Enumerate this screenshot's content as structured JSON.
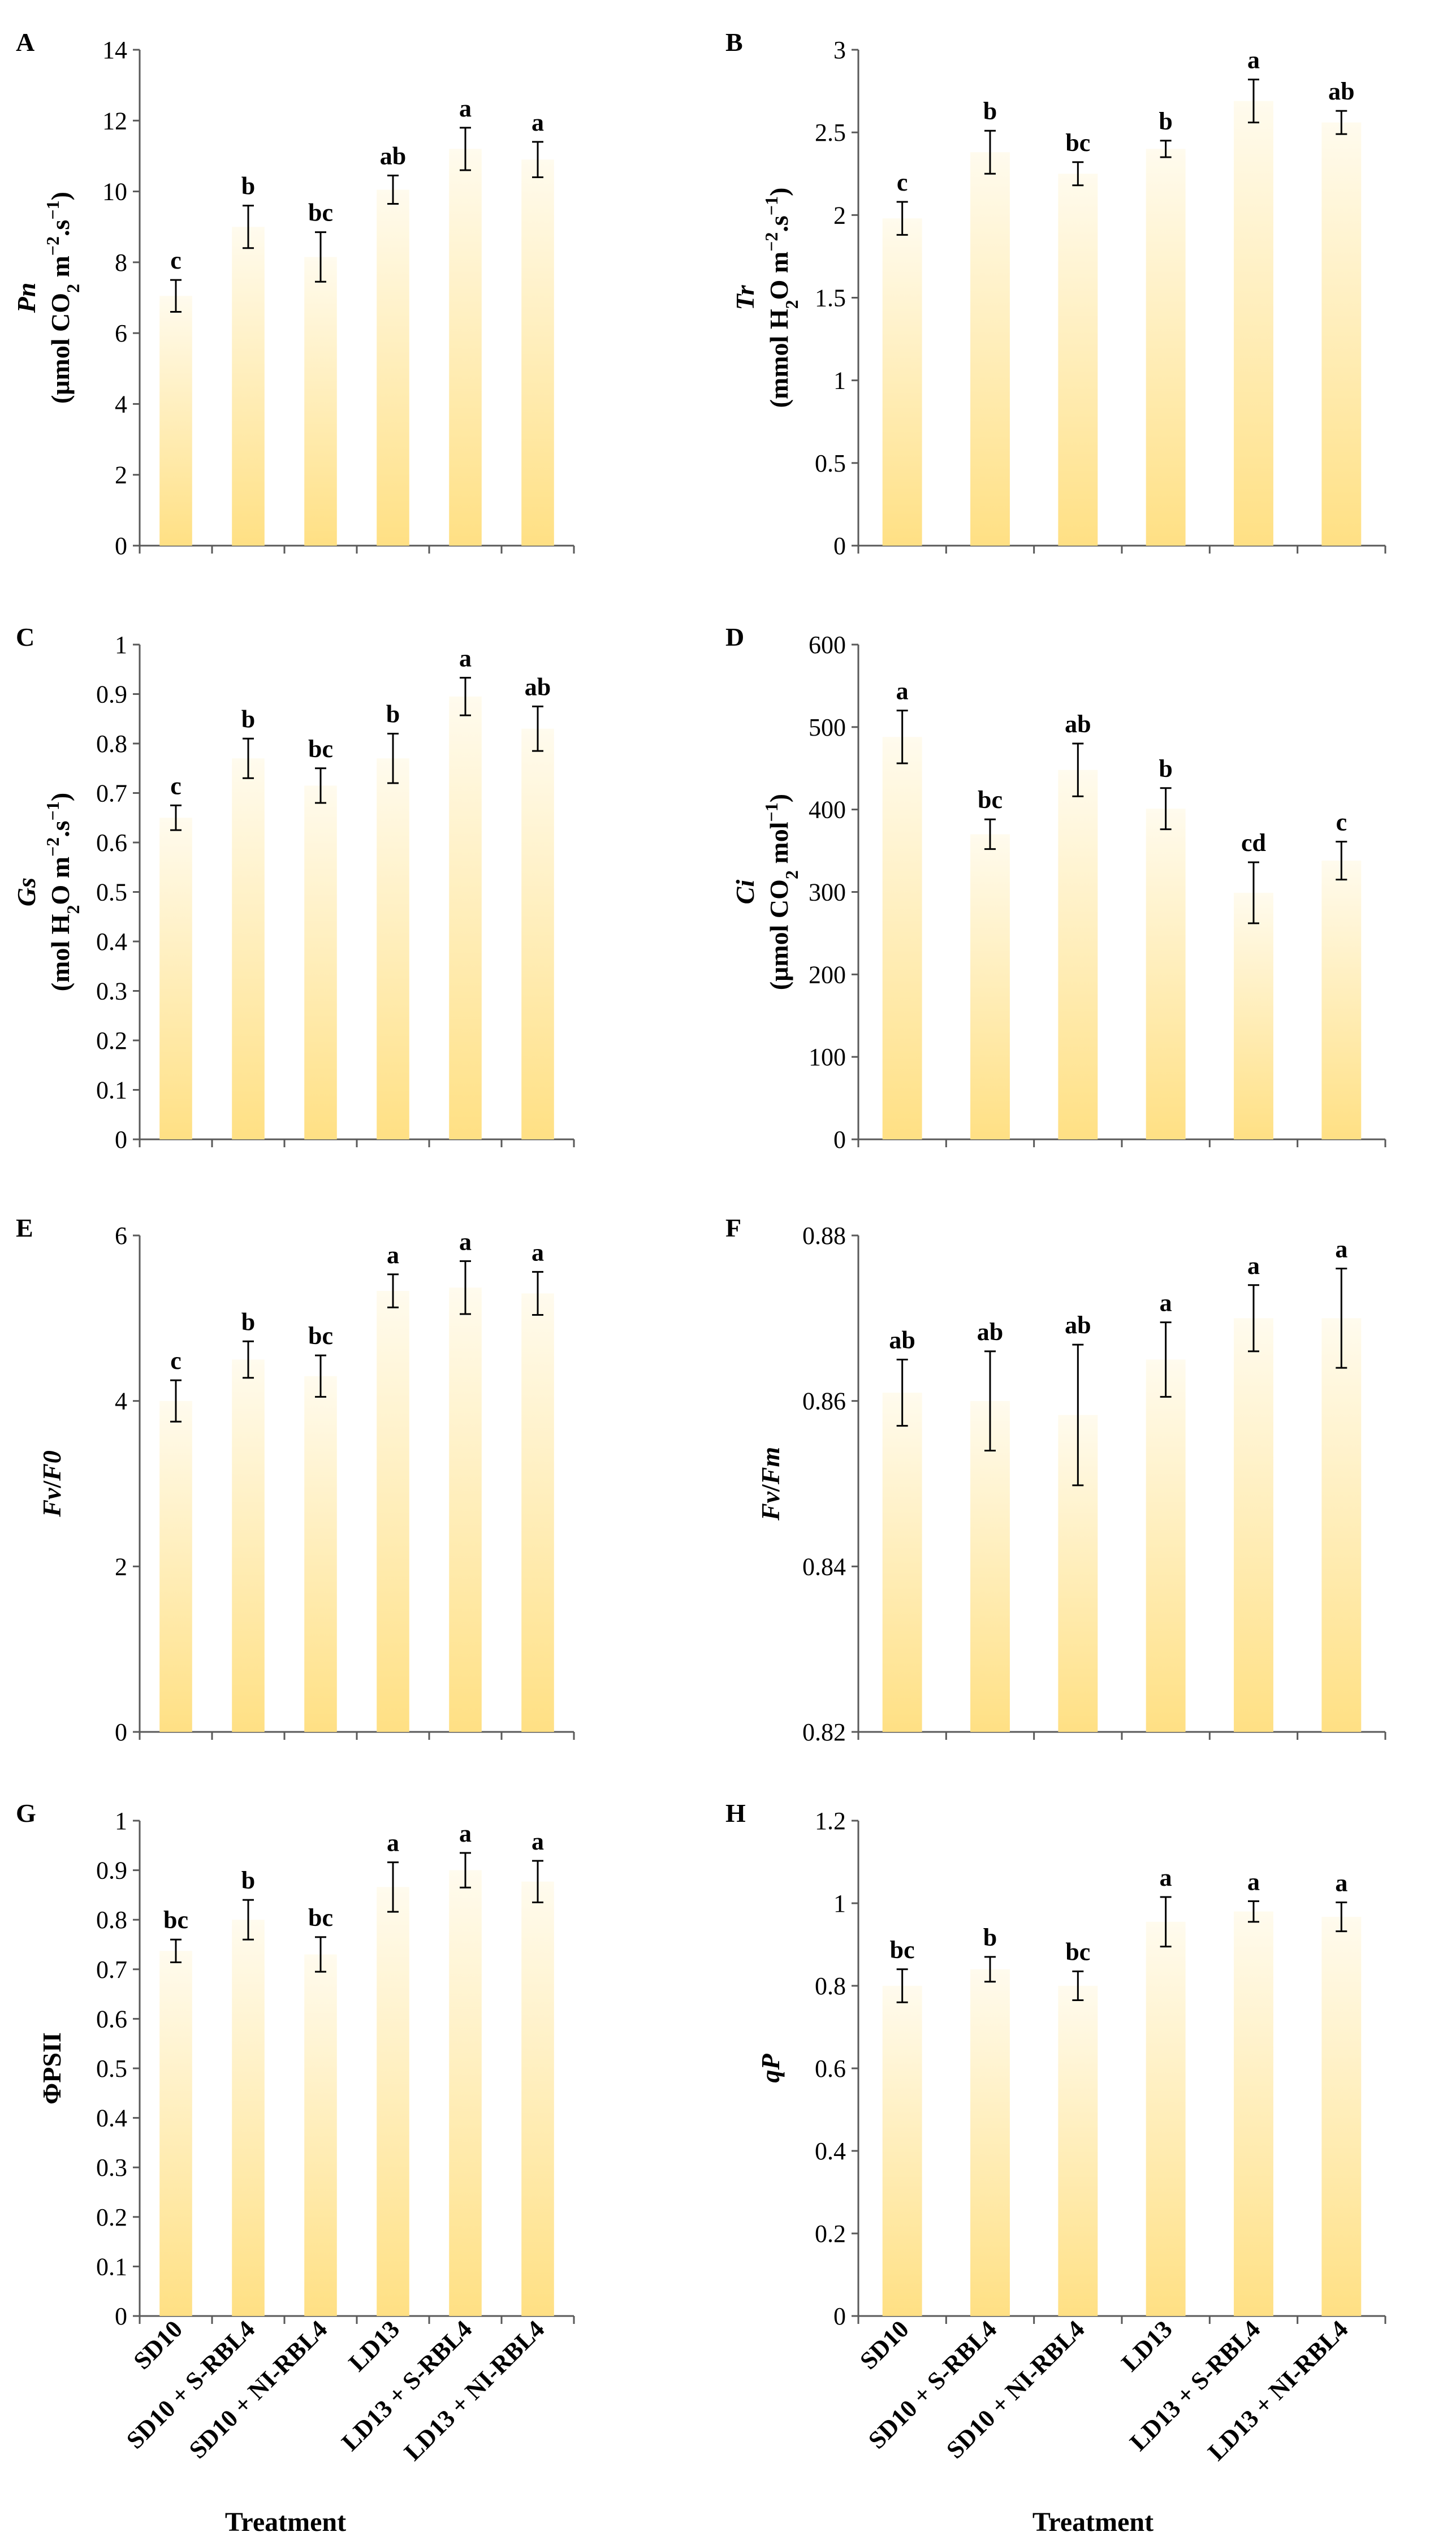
{
  "figure": {
    "categories": [
      "SD10",
      "SD10 + S-RBL4",
      "SD10 + NI-RBL4",
      "LD13",
      "LD13 + S-RBL4",
      "LD13 + NI-RBL4"
    ],
    "xlabel": "Treatment",
    "bar_gradient": [
      "#FFFBEE",
      "#FFE084"
    ]
  },
  "chart_data": [
    {
      "type": "bar",
      "panel": "A",
      "ylabel": [
        {
          "text": "Pn",
          "italic": true
        }
      ],
      "yunit": [
        {
          "text": "(μmol CO"
        },
        {
          "text": "2",
          "sub": true
        },
        {
          "text": " m"
        },
        {
          "text": "−2",
          "sup": true
        },
        {
          "text": ".s"
        },
        {
          "text": "−1",
          "sup": true
        },
        {
          "text": ")"
        }
      ],
      "ylim": [
        0,
        14
      ],
      "yticks": [
        0,
        2,
        4,
        6,
        8,
        10,
        12,
        14
      ],
      "values": [
        7.05,
        9.0,
        8.15,
        10.05,
        11.2,
        10.9
      ],
      "errors": [
        0.45,
        0.6,
        0.7,
        0.4,
        0.6,
        0.5
      ],
      "labels": [
        "c",
        "b",
        "bc",
        "ab",
        "a",
        "a"
      ]
    },
    {
      "type": "bar",
      "panel": "B",
      "ylabel": [
        {
          "text": "Tr",
          "italic": true
        }
      ],
      "yunit": [
        {
          "text": "(mmol H"
        },
        {
          "text": "2",
          "sub": true
        },
        {
          "text": "O m"
        },
        {
          "text": "−2",
          "sup": true
        },
        {
          "text": ".s"
        },
        {
          "text": "−1",
          "sup": true
        },
        {
          "text": ")"
        }
      ],
      "ylim": [
        0,
        3
      ],
      "yticks": [
        0,
        0.5,
        1,
        1.5,
        2,
        2.5,
        3
      ],
      "values": [
        1.98,
        2.38,
        2.25,
        2.4,
        2.69,
        2.56
      ],
      "errors": [
        0.1,
        0.13,
        0.07,
        0.05,
        0.13,
        0.07
      ],
      "labels": [
        "c",
        "b",
        "bc",
        "b",
        "a",
        "ab"
      ]
    },
    {
      "type": "bar",
      "panel": "C",
      "ylabel": [
        {
          "text": "Gs",
          "italic": true
        }
      ],
      "yunit": [
        {
          "text": "(mol H"
        },
        {
          "text": "2",
          "sub": true
        },
        {
          "text": "O m"
        },
        {
          "text": "−2",
          "sup": true
        },
        {
          "text": ".s"
        },
        {
          "text": "−1",
          "sup": true
        },
        {
          "text": ")"
        }
      ],
      "ylim": [
        0,
        1
      ],
      "yticks": [
        0,
        0.1,
        0.2,
        0.3,
        0.4,
        0.5,
        0.6,
        0.7,
        0.8,
        0.9,
        1
      ],
      "values": [
        0.65,
        0.77,
        0.715,
        0.77,
        0.895,
        0.83
      ],
      "errors": [
        0.025,
        0.04,
        0.035,
        0.05,
        0.038,
        0.045
      ],
      "labels": [
        "c",
        "b",
        "bc",
        "b",
        "a",
        "ab"
      ]
    },
    {
      "type": "bar",
      "panel": "D",
      "ylabel": [
        {
          "text": "Ci",
          "italic": true
        }
      ],
      "yunit": [
        {
          "text": "(μmol CO"
        },
        {
          "text": "2",
          "sub": true
        },
        {
          "text": " mol"
        },
        {
          "text": "−1",
          "sup": true
        },
        {
          "text": ")"
        }
      ],
      "ylim": [
        0,
        600
      ],
      "yticks": [
        0,
        100,
        200,
        300,
        400,
        500,
        600
      ],
      "values": [
        488,
        370,
        448,
        401,
        299,
        338
      ],
      "errors": [
        32,
        18,
        32,
        25,
        37,
        23
      ],
      "labels": [
        "a",
        "bc",
        "ab",
        "b",
        "cd",
        "c"
      ]
    },
    {
      "type": "bar",
      "panel": "E",
      "ylabel": [
        {
          "text": "Fv",
          "italic": true
        },
        {
          "text": "/"
        },
        {
          "text": "F0",
          "italic": true
        }
      ],
      "yunit": [],
      "ylim": [
        0,
        6
      ],
      "yticks": [
        0,
        2,
        4,
        6
      ],
      "values": [
        4.0,
        4.5,
        4.3,
        5.33,
        5.37,
        5.3
      ],
      "errors": [
        0.25,
        0.22,
        0.25,
        0.2,
        0.32,
        0.26
      ],
      "labels": [
        "c",
        "b",
        "bc",
        "a",
        "a",
        "a"
      ]
    },
    {
      "type": "bar",
      "panel": "F",
      "ylabel": [
        {
          "text": "Fv",
          "italic": true
        },
        {
          "text": "/"
        },
        {
          "text": "Fm",
          "italic": true
        }
      ],
      "yunit": [],
      "ylim": [
        0.82,
        0.88
      ],
      "yticks": [
        0.82,
        0.84,
        0.86,
        0.88
      ],
      "values": [
        0.861,
        0.86,
        0.8583,
        0.865,
        0.87,
        0.87
      ],
      "errors": [
        0.004,
        0.006,
        0.0085,
        0.0045,
        0.004,
        0.006
      ],
      "labels": [
        "ab",
        "ab",
        "ab",
        "a",
        "a",
        "a"
      ]
    },
    {
      "type": "bar",
      "panel": "G",
      "ylabel": [
        {
          "text": "ΦPSII"
        }
      ],
      "yunit": [],
      "ylim": [
        0,
        1
      ],
      "yticks": [
        0,
        0.1,
        0.2,
        0.3,
        0.4,
        0.5,
        0.6,
        0.7,
        0.8,
        0.9,
        1
      ],
      "values": [
        0.737,
        0.8,
        0.73,
        0.866,
        0.9,
        0.877
      ],
      "errors": [
        0.023,
        0.04,
        0.035,
        0.05,
        0.035,
        0.042
      ],
      "labels": [
        "bc",
        "b",
        "bc",
        "a",
        "a",
        "a"
      ]
    },
    {
      "type": "bar",
      "panel": "H",
      "ylabel": [
        {
          "text": "qP",
          "italic": true
        }
      ],
      "yunit": [],
      "ylim": [
        0,
        1.2
      ],
      "yticks": [
        0,
        0.2,
        0.4,
        0.6,
        0.8,
        1,
        1.2
      ],
      "values": [
        0.8,
        0.84,
        0.8,
        0.955,
        0.98,
        0.967
      ],
      "errors": [
        0.04,
        0.03,
        0.035,
        0.06,
        0.025,
        0.035
      ],
      "labels": [
        "bc",
        "b",
        "bc",
        "a",
        "a",
        "a"
      ]
    }
  ]
}
